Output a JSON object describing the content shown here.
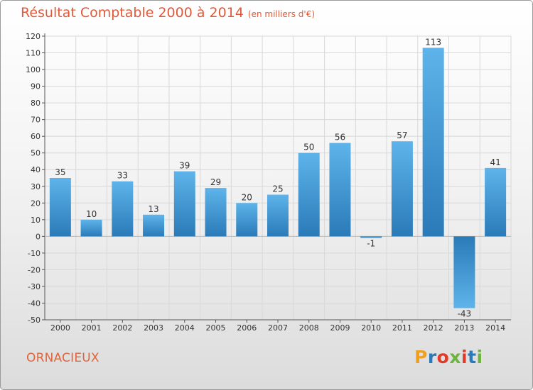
{
  "header": {
    "title": "Résultat Comptable 2000 à 2014",
    "unit": "(en milliers d'€)"
  },
  "footer": {
    "commune": "ORNACIEUX",
    "logo": [
      "P",
      "r",
      "o",
      "x",
      "i",
      "t",
      "i"
    ]
  },
  "colors": {
    "title": "#e05a3a",
    "bar_light": "#5eb4ea",
    "bar_dark": "#2a7ab8",
    "grid": "#d8d8d8"
  },
  "chart_data": {
    "type": "bar",
    "title": "Résultat Comptable 2000 à 2014",
    "ylabel": "en milliers d'€",
    "categories": [
      "2000",
      "2001",
      "2002",
      "2003",
      "2004",
      "2005",
      "2006",
      "2007",
      "2008",
      "2009",
      "2010",
      "2011",
      "2012",
      "2013",
      "2014"
    ],
    "values": [
      35,
      10,
      33,
      13,
      39,
      29,
      20,
      25,
      50,
      56,
      -1,
      57,
      113,
      -43,
      41
    ],
    "value_labels": [
      "35",
      "10",
      "33",
      "13",
      "39",
      "29",
      "20",
      "25",
      "50",
      "56",
      "-1",
      "57",
      "113",
      "-43",
      "41"
    ],
    "ylim": [
      -50,
      120
    ],
    "yticks": [
      120,
      110,
      100,
      90,
      80,
      70,
      60,
      50,
      40,
      30,
      20,
      10,
      0,
      -10,
      -20,
      -30,
      -40,
      -50
    ],
    "ytick_labels": [
      "120",
      "110",
      "100",
      "90",
      "80",
      "70",
      "60",
      "50",
      "40",
      "30",
      "20",
      "10",
      "0",
      "-10",
      "-20",
      "-30",
      "-40",
      "-50"
    ],
    "grid": true
  }
}
